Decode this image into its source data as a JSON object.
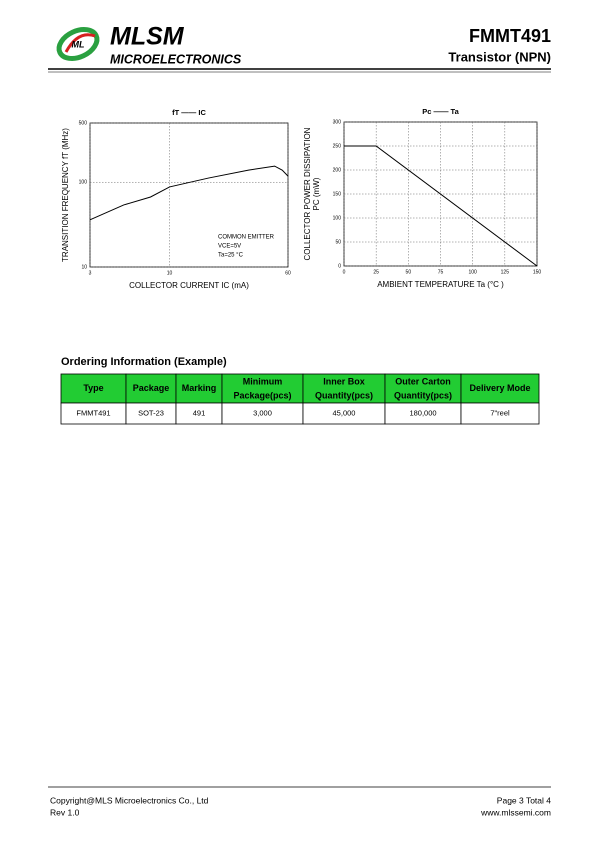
{
  "header": {
    "brand": "MLSM",
    "subtitle": "MICROELECTRONICS",
    "part": "FMMT491",
    "description": "Transistor  (NPN)"
  },
  "chart_data": [
    {
      "type": "line",
      "title": "fT —— IC",
      "xlabel": "COLLECTOR CURRENT  IC  (mA)",
      "ylabel": "TRANSITION FREQUENCY  fT  (MHz)",
      "annotations": [
        "COMMON EMITTER",
        "VCE=5V",
        "Ta=25 °C"
      ],
      "x": [
        3,
        5,
        7.5,
        10,
        18,
        33,
        49,
        55,
        60
      ],
      "values": [
        36,
        54,
        67,
        88,
        112,
        139,
        155,
        139,
        118
      ],
      "color": "#000000",
      "xscale": "log",
      "yscale": "log",
      "xlim": [
        3,
        60
      ],
      "ylim": [
        10,
        500
      ],
      "xticks": [
        3,
        10,
        60
      ],
      "yticks": [
        10,
        100,
        500
      ],
      "grid": true
    },
    {
      "type": "line",
      "title": "Pc —— Ta",
      "xlabel": "AMBIENT TEMPERATURE Ta (°C )",
      "ylabel": [
        "COLLECTOR POWER DISSIPATION",
        "PC (mW)"
      ],
      "x": [
        0,
        25,
        150
      ],
      "values": [
        250,
        250,
        0
      ],
      "color": "#000000",
      "xlim": [
        0,
        150
      ],
      "ylim": [
        0,
        300
      ],
      "xticks": [
        0,
        25,
        50,
        75,
        100,
        125,
        150
      ],
      "yticks": [
        0,
        50,
        100,
        150,
        200,
        250,
        300
      ],
      "grid": true
    }
  ],
  "ordering": {
    "title": "Ordering Information (Example)",
    "header": [
      "Type",
      "Package",
      "Marking",
      [
        "Minimum",
        "Package(pcs)"
      ],
      [
        "Inner Box",
        "Quantity(pcs)"
      ],
      [
        "Outer Carton",
        "Quantity(pcs)"
      ],
      "Delivery Mode"
    ],
    "rows": [
      [
        "FMMT491",
        "SOT-23",
        "491",
        "3,000",
        "45,000",
        "180,000",
        "7\"reel"
      ]
    ]
  },
  "footer": {
    "copyright": "Copyright@MLS Microelectronics Co., Ltd",
    "revision": "Rev 1.0",
    "page": "Page 3 Total 4",
    "website": "www.mlssemi.com"
  }
}
